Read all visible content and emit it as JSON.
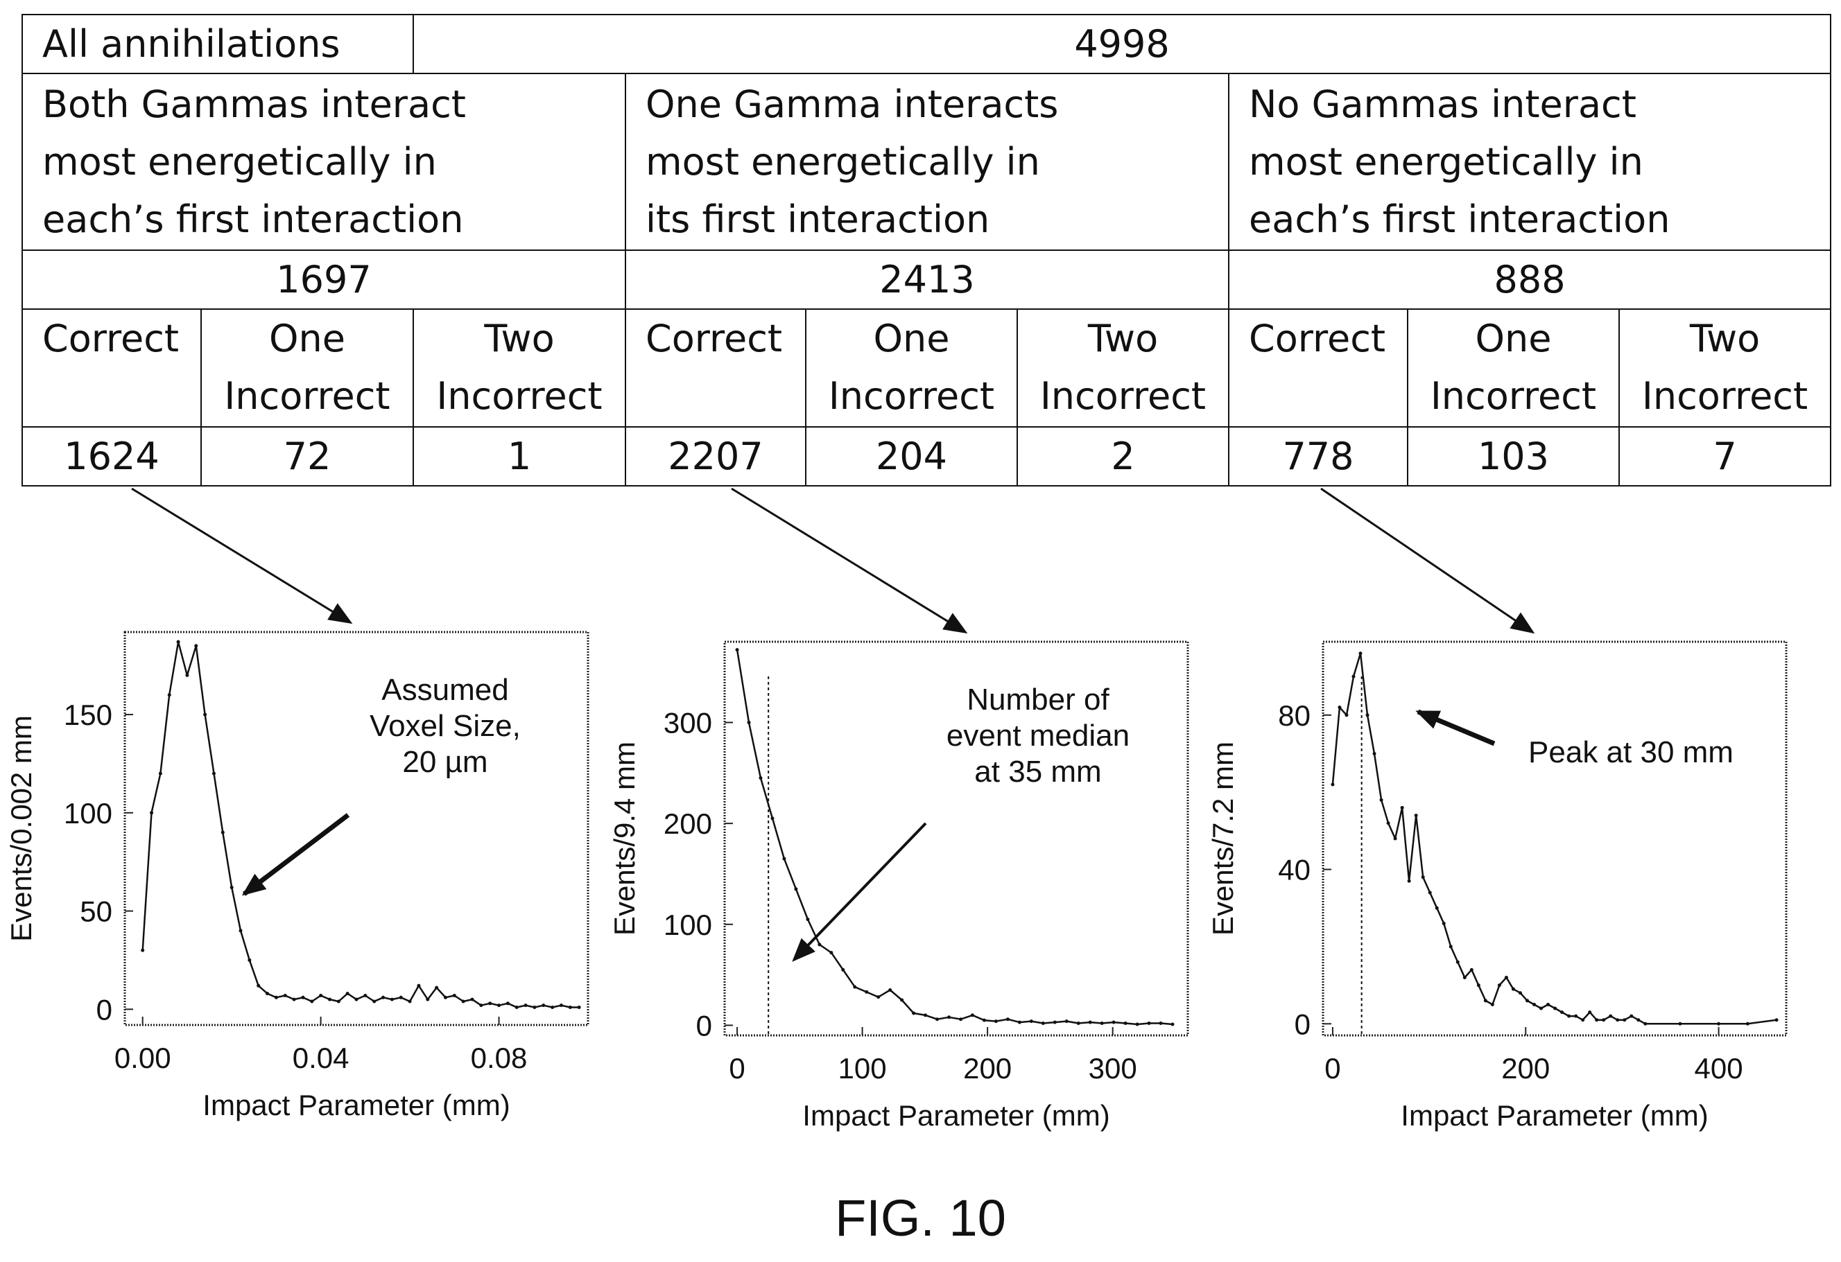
{
  "table": {
    "all_label": "All annihilations",
    "all_value": "4998",
    "groups": [
      {
        "lines": [
          "Both Gammas interact",
          "most energetically in",
          "each’s first interaction"
        ],
        "total": "1697",
        "cols": [
          {
            "label": [
              "Correct",
              ""
            ],
            "value": "1624"
          },
          {
            "label": [
              "One",
              "Incorrect"
            ],
            "value": "72"
          },
          {
            "label": [
              "Two",
              "Incorrect"
            ],
            "value": "1"
          }
        ]
      },
      {
        "lines": [
          "One Gamma interacts",
          "most energetically in",
          "its first interaction"
        ],
        "total": "2413",
        "cols": [
          {
            "label": [
              "Correct",
              ""
            ],
            "value": "2207"
          },
          {
            "label": [
              "One",
              "Incorrect"
            ],
            "value": "204"
          },
          {
            "label": [
              "Two",
              "Incorrect"
            ],
            "value": "2"
          }
        ]
      },
      {
        "lines": [
          "No Gammas interact",
          "most energetically in",
          "each’s first interaction"
        ],
        "total": "888",
        "cols": [
          {
            "label": [
              "Correct",
              ""
            ],
            "value": "778"
          },
          {
            "label": [
              "One",
              "Incorrect"
            ],
            "value": "103"
          },
          {
            "label": [
              "Two",
              "Incorrect"
            ],
            "value": "7"
          }
        ]
      }
    ]
  },
  "chart_data": [
    {
      "type": "line",
      "xlabel": "Impact Parameter (mm)",
      "ylabel": "Events/0.002 mm",
      "xlim": [
        -0.004,
        0.1
      ],
      "ylim": [
        -8,
        192
      ],
      "xticks": [
        0.0,
        0.04,
        0.08
      ],
      "xtick_labels": [
        "0.00",
        "0.04",
        "0.08"
      ],
      "yticks": [
        0,
        50,
        100,
        150
      ],
      "yticks_labels": [
        "0",
        "50",
        "100",
        "150"
      ],
      "x": [
        0.0,
        0.002,
        0.004,
        0.006,
        0.008,
        0.01,
        0.012,
        0.014,
        0.016,
        0.018,
        0.02,
        0.022,
        0.024,
        0.026,
        0.028,
        0.03,
        0.032,
        0.034,
        0.036,
        0.038,
        0.04,
        0.042,
        0.044,
        0.046,
        0.048,
        0.05,
        0.052,
        0.054,
        0.056,
        0.058,
        0.06,
        0.062,
        0.064,
        0.066,
        0.068,
        0.07,
        0.072,
        0.074,
        0.076,
        0.078,
        0.08,
        0.082,
        0.084,
        0.086,
        0.088,
        0.09,
        0.092,
        0.094,
        0.096,
        0.098
      ],
      "y": [
        30,
        100,
        120,
        160,
        187,
        170,
        185,
        150,
        120,
        90,
        62,
        40,
        25,
        12,
        8,
        6,
        7,
        5,
        6,
        4,
        7,
        5,
        4,
        8,
        5,
        7,
        4,
        6,
        5,
        6,
        4,
        12,
        5,
        11,
        6,
        7,
        4,
        5,
        2,
        3,
        2,
        3,
        1,
        2,
        1,
        2,
        1,
        2,
        1,
        1
      ],
      "annotation": {
        "lines": [
          "Assumed",
          "Voxel Size,",
          "20 µm"
        ]
      }
    },
    {
      "type": "line",
      "xlabel": "Impact Parameter (mm)",
      "ylabel": "Events/9.4 mm",
      "xlim": [
        -10,
        360
      ],
      "ylim": [
        -10,
        380
      ],
      "xticks": [
        0,
        100,
        200,
        300
      ],
      "xtick_labels": [
        "0",
        "100",
        "200",
        "300"
      ],
      "yticks": [
        0,
        100,
        200,
        300
      ],
      "yticks_labels": [
        "0",
        "100",
        "200",
        "300"
      ],
      "median_x": 25,
      "x": [
        0,
        9.4,
        18.8,
        28.2,
        37.6,
        47,
        56.4,
        65.8,
        75.2,
        84.6,
        94,
        103.4,
        112.8,
        122.2,
        131.6,
        141,
        150.4,
        159.8,
        169.2,
        178.6,
        188,
        197.4,
        206.8,
        216.2,
        225.6,
        235,
        244.4,
        253.8,
        263.2,
        272.6,
        282,
        291.4,
        300.8,
        310.2,
        319.6,
        329,
        338.4,
        347.8
      ],
      "y": [
        372,
        300,
        245,
        205,
        165,
        135,
        105,
        80,
        72,
        55,
        38,
        33,
        28,
        35,
        25,
        12,
        10,
        6,
        8,
        6,
        10,
        5,
        4,
        6,
        3,
        4,
        2,
        3,
        4,
        2,
        3,
        2,
        3,
        2,
        1,
        2,
        2,
        1
      ],
      "annotation": {
        "lines": [
          "Number of",
          "event median",
          "at 35 mm"
        ]
      }
    },
    {
      "type": "line",
      "xlabel": "Impact Parameter (mm)",
      "ylabel": "Events/7.2 mm",
      "xlim": [
        -10,
        470
      ],
      "ylim": [
        -3,
        99
      ],
      "xticks": [
        0,
        200,
        400
      ],
      "xtick_labels": [
        "0",
        "200",
        "400"
      ],
      "yticks": [
        0,
        40,
        80
      ],
      "yticks_labels": [
        "0",
        "40",
        "80"
      ],
      "peak_x": 30,
      "x": [
        0,
        7.2,
        14.4,
        21.6,
        28.8,
        36,
        43.2,
        50.4,
        57.6,
        64.8,
        72,
        79.2,
        86.4,
        93.6,
        100.8,
        108,
        115.2,
        122.4,
        129.6,
        136.8,
        144,
        151.2,
        158.4,
        165.6,
        172.8,
        180,
        187.2,
        194.4,
        201.6,
        208.8,
        216,
        223.2,
        230.4,
        237.6,
        244.8,
        252,
        259.2,
        266.4,
        273.6,
        280.8,
        288,
        295.2,
        302.4,
        309.6,
        316.8,
        324,
        360,
        400,
        430,
        460
      ],
      "y": [
        62,
        82,
        80,
        90,
        96,
        80,
        70,
        58,
        52,
        48,
        56,
        37,
        54,
        38,
        34,
        30,
        26,
        20,
        16,
        12,
        14,
        10,
        6,
        5,
        10,
        12,
        9,
        8,
        6,
        5,
        4,
        5,
        4,
        3,
        2,
        2,
        1,
        3,
        1,
        1,
        2,
        1,
        1,
        2,
        1,
        0,
        0,
        0,
        0,
        1
      ],
      "annotation": {
        "lines": [
          "Peak at 30 mm"
        ]
      }
    }
  ],
  "caption": "FIG. 10"
}
